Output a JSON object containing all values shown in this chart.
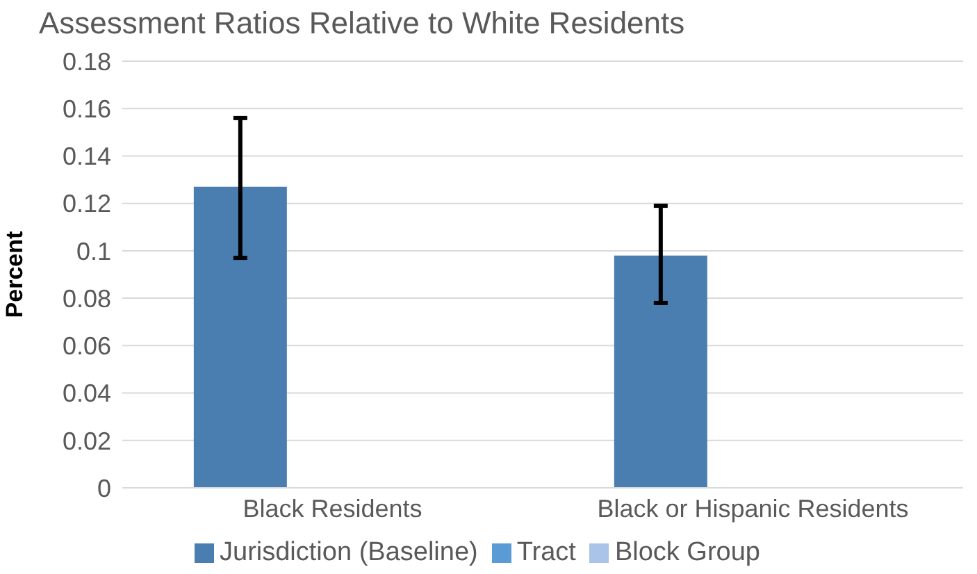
{
  "chart_data": {
    "type": "bar",
    "title": "Assessment Ratios Relative to White Residents",
    "ylabel": "Percent",
    "categories": [
      "Black Residents",
      "Black or Hispanic Residents"
    ],
    "series": [
      {
        "name": "Jurisdiction (Baseline)",
        "color": "#4a7eb0",
        "values": [
          0.127,
          0.098
        ],
        "errors": [
          [
            0.097,
            0.156
          ],
          [
            0.078,
            0.119
          ]
        ]
      },
      {
        "name": "Tract",
        "color": "#5b9bd5",
        "values": [
          null,
          null
        ]
      },
      {
        "name": "Block Group",
        "color": "#a9c4e8",
        "values": [
          null,
          null
        ]
      }
    ],
    "ylim": [
      0,
      0.18
    ],
    "yticks": [
      0,
      0.02,
      0.04,
      0.06,
      0.08,
      0.1,
      0.12,
      0.14,
      0.16,
      0.18
    ],
    "grid": "y",
    "legend": "bottom"
  }
}
